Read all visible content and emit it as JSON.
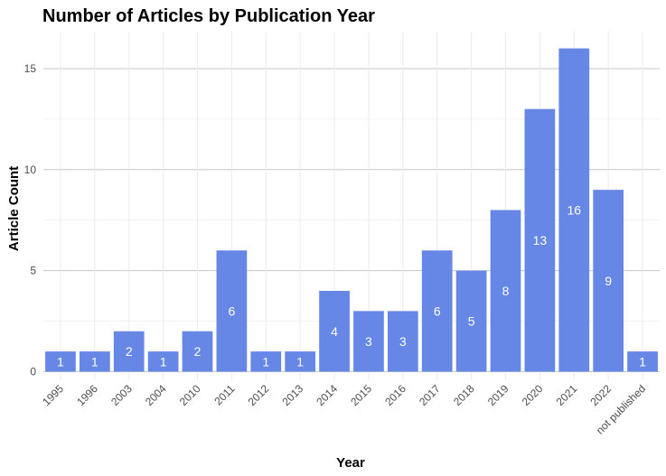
{
  "chart_data": {
    "type": "bar",
    "title": "Number of Articles by Publication Year",
    "xlabel": "Year",
    "ylabel": "Article Count",
    "categories": [
      "1995",
      "1996",
      "2003",
      "2004",
      "2010",
      "2011",
      "2012",
      "2013",
      "2014",
      "2015",
      "2016",
      "2017",
      "2018",
      "2019",
      "2020",
      "2021",
      "2022",
      "not published"
    ],
    "values": [
      1,
      1,
      2,
      1,
      2,
      6,
      1,
      1,
      4,
      3,
      3,
      6,
      5,
      8,
      13,
      16,
      9,
      1
    ],
    "ylim": [
      0,
      17
    ],
    "yticks": [
      0,
      5,
      10,
      15
    ],
    "bar_color": "#6787e7",
    "grid": true,
    "data_labels": true
  }
}
